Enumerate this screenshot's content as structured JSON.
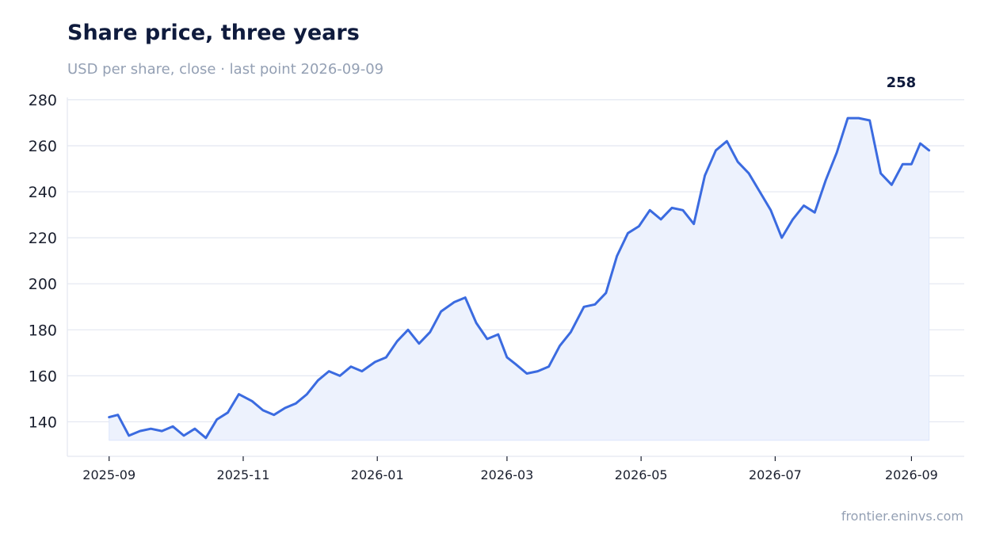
{
  "header": {
    "title": "Share price, three years",
    "subtitle": "USD per share, close · last point 2026-09-09",
    "credit": "frontier.eninvs.com"
  },
  "colors": {
    "line": "#3b6be0",
    "fill": "#edf2fd",
    "grid": "#e3e7f1",
    "title": "#0f1b3d"
  },
  "chart_data": {
    "type": "area",
    "title": "Share price, three years",
    "subtitle": "USD per share, close · last point 2026-09-09",
    "xlabel": "",
    "ylabel": "",
    "grid": true,
    "ylim": [
      125,
      281
    ],
    "xlim": [
      "2025-08-13",
      "2026-09-25"
    ],
    "y_ticks": [
      140,
      160,
      180,
      200,
      220,
      240,
      260,
      280
    ],
    "x_ticks": [
      "2025-09",
      "2025-11",
      "2026-01",
      "2026-03",
      "2026-05",
      "2026-07",
      "2026-09"
    ],
    "end_label": "258",
    "series": [
      {
        "x": [
          "2025-09-01",
          "2025-09-05",
          "2025-09-10",
          "2025-09-15",
          "2025-09-20",
          "2025-09-25",
          "2025-09-30",
          "2025-10-05",
          "2025-10-10",
          "2025-10-15",
          "2025-10-20",
          "2025-10-25",
          "2025-10-30",
          "2025-11-05",
          "2025-11-10",
          "2025-11-15",
          "2025-11-20",
          "2025-11-25",
          "2025-11-30",
          "2025-12-05",
          "2025-12-10",
          "2025-12-15",
          "2025-12-20",
          "2025-12-25",
          "2025-12-31",
          "2026-01-05",
          "2026-01-10",
          "2026-01-15",
          "2026-01-20",
          "2026-01-25",
          "2026-01-30",
          "2026-02-05",
          "2026-02-10",
          "2026-02-15",
          "2026-02-20",
          "2026-02-25",
          "2026-03-01",
          "2026-03-05",
          "2026-03-10",
          "2026-03-15",
          "2026-03-20",
          "2026-03-25",
          "2026-03-30",
          "2026-04-05",
          "2026-04-10",
          "2026-04-15",
          "2026-04-20",
          "2026-04-25",
          "2026-04-30",
          "2026-05-05",
          "2026-05-10",
          "2026-05-15",
          "2026-05-20",
          "2026-05-25",
          "2026-05-30",
          "2026-06-04",
          "2026-06-09",
          "2026-06-14",
          "2026-06-19",
          "2026-06-24",
          "2026-06-29",
          "2026-07-04",
          "2026-07-09",
          "2026-07-14",
          "2026-07-19",
          "2026-07-24",
          "2026-07-29",
          "2026-08-03",
          "2026-08-08",
          "2026-08-13",
          "2026-08-18",
          "2026-08-23",
          "2026-08-28",
          "2026-09-01",
          "2026-09-05",
          "2026-09-09"
        ],
        "values": [
          142,
          143,
          134,
          136,
          137,
          136,
          138,
          134,
          137,
          133,
          141,
          144,
          152,
          149,
          145,
          143,
          146,
          148,
          152,
          158,
          162,
          160,
          164,
          162,
          166,
          168,
          175,
          180,
          174,
          179,
          188,
          192,
          194,
          183,
          176,
          178,
          168,
          165,
          161,
          162,
          164,
          173,
          179,
          190,
          191,
          196,
          212,
          222,
          225,
          232,
          228,
          233,
          232,
          226,
          247,
          258,
          262,
          253,
          248,
          240,
          232,
          220,
          228,
          234,
          231,
          245,
          257,
          272,
          272,
          271,
          248,
          243,
          252,
          252,
          261,
          258
        ]
      }
    ]
  }
}
